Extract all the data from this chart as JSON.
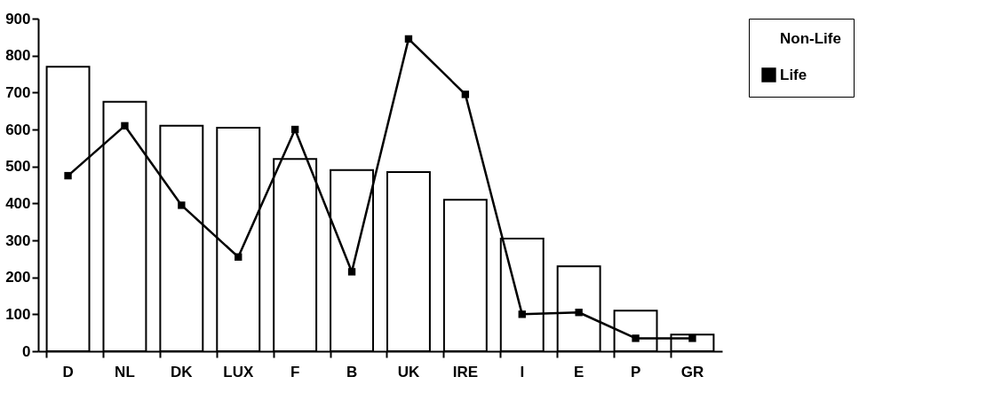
{
  "chart_data": {
    "type": "bar",
    "categories": [
      "D",
      "NL",
      "DK",
      "LUX",
      "F",
      "B",
      "UK",
      "IRE",
      "I",
      "E",
      "P",
      "GR"
    ],
    "series": [
      {
        "name": "Non-Life",
        "color": "#ffffff",
        "values": [
          770,
          675,
          610,
          605,
          520,
          490,
          485,
          410,
          305,
          230,
          110,
          45
        ]
      },
      {
        "name": "Life",
        "type": "line",
        "color": "#000000",
        "values": [
          475,
          610,
          395,
          255,
          600,
          215,
          845,
          695,
          100,
          105,
          35,
          35
        ]
      }
    ],
    "ylim": [
      0,
      900
    ],
    "yticks": [
      0,
      100,
      200,
      300,
      400,
      500,
      600,
      700,
      800,
      900
    ],
    "grid": false,
    "legend": "right",
    "marker": "square",
    "line_style": "solid"
  }
}
